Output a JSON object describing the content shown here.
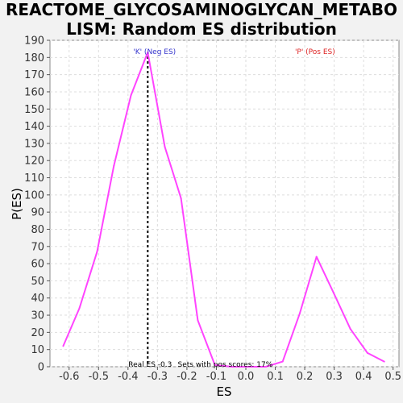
{
  "title_line1": "REACTOME_GLYCOSAMINOGLYCAN_METABO",
  "title_line2": "LISM: Random ES distribution",
  "chart_data": {
    "type": "line",
    "title": "REACTOME_GLYCOSAMINOGLYCAN_METABOLISM: Random ES distribution",
    "xlabel": "ES",
    "ylabel": "P(ES)",
    "xlim": [
      -0.665,
      0.52
    ],
    "ylim": [
      0,
      190
    ],
    "x_ticks": [
      -0.6,
      -0.5,
      -0.4,
      -0.3,
      -0.2,
      -0.1,
      0.0,
      0.1,
      0.2,
      0.3,
      0.4,
      0.5
    ],
    "x_tick_labels": [
      "-0.6",
      "-0.5",
      "-0.4",
      "-0.3",
      "-0.2",
      "-0.1",
      "0.0",
      "0.1",
      "0.2",
      "0.3",
      "0.4",
      "0.5"
    ],
    "y_ticks": [
      0,
      10,
      20,
      30,
      40,
      50,
      60,
      70,
      80,
      90,
      100,
      110,
      120,
      130,
      140,
      150,
      160,
      170,
      180,
      190
    ],
    "grid": true,
    "series": [
      {
        "color": "#ff44ff",
        "x": [
          -0.62,
          -0.565,
          -0.505,
          -0.448,
          -0.39,
          -0.333,
          -0.275,
          -0.22,
          -0.163,
          -0.105,
          -0.048,
          0.01,
          0.068,
          0.125,
          0.183,
          0.24,
          0.298,
          0.355,
          0.413,
          0.47
        ],
        "y": [
          12,
          34,
          67,
          117,
          158,
          183,
          128,
          98,
          27,
          1,
          0,
          0,
          0,
          3,
          31,
          64,
          43,
          22,
          8,
          3
        ]
      }
    ],
    "reference_line": {
      "x": -0.333,
      "label": "Real ES -0.3",
      "style": "dashed",
      "color": "#000000"
    },
    "annotations": [
      {
        "text": "'K' (Neg ES)",
        "color": "#3333cc",
        "x": -0.31
      },
      {
        "text": "'P' (Pos ES)",
        "color": "#dd2222",
        "x": 0.235
      },
      {
        "text": "Sets with pos scores: 17%",
        "color": "#000000",
        "x": -0.07
      }
    ]
  }
}
